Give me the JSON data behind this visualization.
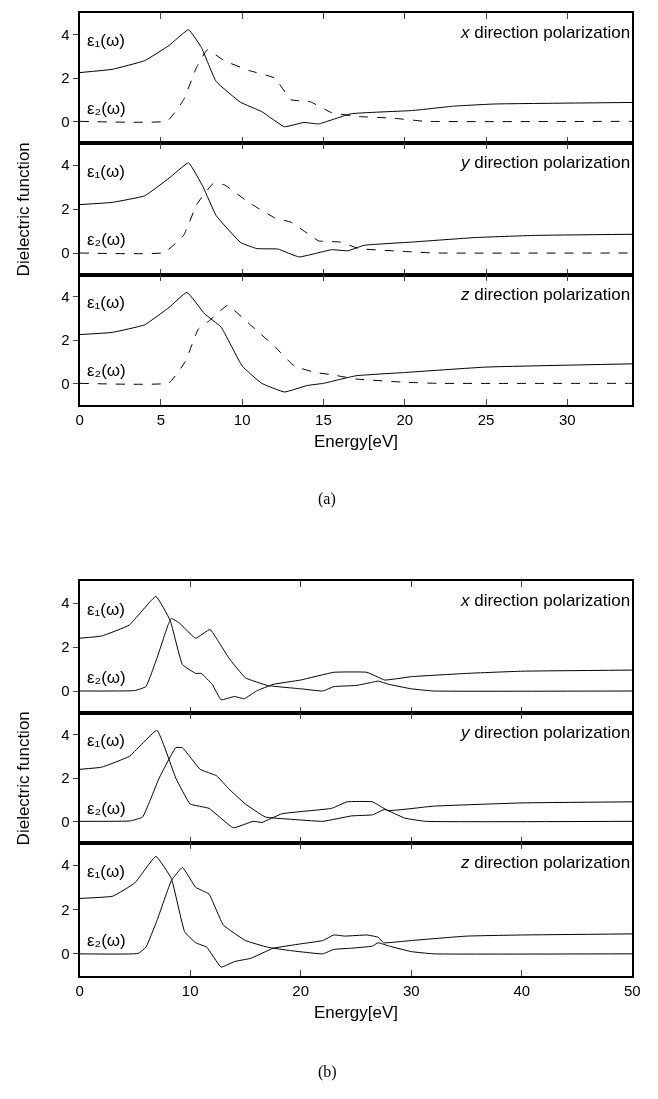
{
  "chart_data": [
    {
      "type": "line",
      "xlim": [
        0,
        34
      ],
      "xticks": [
        0,
        5,
        10,
        15,
        20,
        25,
        30
      ],
      "ylim": [
        -1,
        5
      ],
      "yticks": [
        0,
        2,
        4
      ],
      "tick_labels": "y",
      "annotations": [
        "x direction polarization"
      ],
      "series": [
        {
          "name": "ε₁(ω)",
          "color": "#000000",
          "line_style": "solid",
          "x": [
            0,
            2,
            4,
            5.5,
            6.7,
            7.5,
            8.4,
            9.9,
            11.2,
            12.6,
            13.8,
            14.7,
            16.7,
            20.5,
            23,
            25.5,
            34
          ],
          "values": [
            2.25,
            2.4,
            2.8,
            3.5,
            4.23,
            3.4,
            1.84,
            0.88,
            0.45,
            -0.25,
            -0.05,
            -0.12,
            0.35,
            0.5,
            0.7,
            0.8,
            0.87
          ]
        },
        {
          "name": "ε₂(ω)",
          "color": "#000000",
          "line_style": "dashed",
          "x": [
            0,
            5.4,
            6.4,
            7.2,
            7.85,
            8.9,
            10.4,
            12.0,
            13.0,
            14.2,
            15.5,
            17.2,
            19.2,
            21.3,
            34
          ],
          "values": [
            0,
            0.02,
            1.0,
            2.5,
            3.3,
            2.8,
            2.35,
            2.0,
            1.0,
            0.9,
            0.4,
            0.22,
            0.15,
            0,
            0
          ]
        }
      ]
    },
    {
      "type": "line",
      "xlim": [
        0,
        34
      ],
      "xticks": [
        0,
        5,
        10,
        15,
        20,
        25,
        30
      ],
      "ylim": [
        -1,
        5
      ],
      "yticks": [
        0,
        2,
        4
      ],
      "tick_labels": "y",
      "ylabel": "Dielectric function",
      "annotations": [
        "y direction polarization"
      ],
      "series": [
        {
          "name": "ε₁(ω)",
          "color": "#000000",
          "line_style": "solid",
          "x": [
            0,
            2,
            4,
            5.5,
            6.7,
            7.6,
            8.4,
            9.9,
            10.9,
            12.2,
            13.5,
            15.5,
            16.5,
            17.5,
            20.5,
            24.3,
            28,
            34
          ],
          "values": [
            2.2,
            2.3,
            2.6,
            3.4,
            4.1,
            3.0,
            1.7,
            0.48,
            0.2,
            0.18,
            -0.18,
            0.15,
            0.1,
            0.35,
            0.5,
            0.7,
            0.8,
            0.85
          ]
        },
        {
          "name": "ε₂(ω)",
          "color": "#000000",
          "line_style": "dashed",
          "x": [
            0,
            5.2,
            6.4,
            7.2,
            8.2,
            8.9,
            10.4,
            12.0,
            13.0,
            14.0,
            14.7,
            16.0,
            17.2,
            20.5,
            21.8,
            34
          ],
          "values": [
            0,
            0.02,
            0.8,
            2.2,
            3.15,
            3.1,
            2.3,
            1.6,
            1.4,
            0.9,
            0.55,
            0.5,
            0.2,
            0.05,
            0,
            0
          ]
        }
      ]
    },
    {
      "type": "line",
      "xlim": [
        0,
        34
      ],
      "xticks": [
        0,
        5,
        10,
        15,
        20,
        25,
        30
      ],
      "ylim": [
        -1,
        5
      ],
      "yticks": [
        0,
        2,
        4
      ],
      "xlabel": "Energy[eV]",
      "annotations": [
        "z direction polarization",
        "(a)"
      ],
      "series": [
        {
          "name": "ε₁(ω)",
          "color": "#000000",
          "line_style": "solid",
          "x": [
            0,
            2,
            4,
            5.5,
            6.6,
            7.7,
            8.7,
            10,
            11.2,
            12.6,
            14,
            15,
            17,
            20,
            25,
            34
          ],
          "values": [
            2.25,
            2.35,
            2.7,
            3.5,
            4.2,
            3.2,
            2.6,
            0.8,
            0.0,
            -0.4,
            -0.1,
            0,
            0.35,
            0.5,
            0.75,
            0.9
          ]
        },
        {
          "name": "ε₂(ω)",
          "color": "#000000",
          "line_style": "dashed",
          "x": [
            0,
            5.5,
            6.5,
            7.3,
            8,
            9.1,
            10.5,
            12,
            13.2,
            14.5,
            15.5,
            17,
            20,
            22,
            34
          ],
          "values": [
            0,
            0.02,
            1.0,
            2.5,
            2.9,
            3.6,
            2.7,
            1.7,
            0.8,
            0.5,
            0.4,
            0.2,
            0.05,
            0,
            0
          ]
        }
      ]
    },
    {
      "type": "line",
      "xlim": [
        0,
        50
      ],
      "xticks": [
        0,
        10,
        20,
        30,
        40,
        50
      ],
      "ylim": [
        -1,
        5
      ],
      "yticks": [
        0,
        2,
        4
      ],
      "tick_labels": "y",
      "annotations": [
        "x direction polarization"
      ],
      "series": [
        {
          "name": "ε₁(ω)",
          "color": "#000000",
          "line_style": "solid",
          "x": [
            0,
            2,
            4.5,
            6.9,
            8.2,
            9.3,
            10.5,
            11,
            12,
            12.8,
            14,
            14.9,
            16,
            17.5,
            20,
            23,
            26,
            27.6,
            30,
            35,
            40,
            50
          ],
          "values": [
            2.4,
            2.5,
            3.0,
            4.3,
            3.2,
            1.2,
            0.8,
            0.8,
            0.3,
            -0.4,
            -0.25,
            -0.35,
            0,
            0.3,
            0.5,
            0.85,
            0.85,
            0.5,
            0.65,
            0.8,
            0.9,
            0.95
          ]
        },
        {
          "name": "ε₂(ω)",
          "color": "#000000",
          "line_style": "solid",
          "x": [
            0,
            5,
            6,
            7,
            8,
            8.3,
            9,
            10.5,
            11.8,
            12.5,
            13.5,
            15,
            17,
            20,
            22,
            23,
            25,
            26.5,
            27,
            28,
            30,
            32,
            50
          ],
          "values": [
            0,
            0.02,
            0.2,
            1.5,
            3.0,
            3.3,
            3.1,
            2.4,
            2.8,
            2.3,
            1.5,
            0.6,
            0.25,
            0.1,
            0,
            0.2,
            0.25,
            0.4,
            0.45,
            0.3,
            0.1,
            0,
            0
          ]
        }
      ]
    },
    {
      "type": "line",
      "xlim": [
        0,
        50
      ],
      "xticks": [
        0,
        10,
        20,
        30,
        40,
        50
      ],
      "ylim": [
        -1,
        5
      ],
      "yticks": [
        0,
        2,
        4
      ],
      "tick_labels": "y",
      "ylabel": "Dielectric function",
      "annotations": [
        "y direction polarization"
      ],
      "series": [
        {
          "name": "ε₁(ω)",
          "color": "#000000",
          "line_style": "solid",
          "x": [
            0,
            2,
            4.5,
            7.0,
            8.7,
            10,
            11.7,
            13.9,
            15.7,
            16.5,
            18.3,
            22.8,
            24.2,
            26.5,
            27.9,
            32,
            40,
            50
          ],
          "values": [
            2.4,
            2.5,
            3.0,
            4.2,
            2.0,
            0.8,
            0.6,
            -0.3,
            0,
            -0.05,
            0.35,
            0.6,
            0.9,
            0.9,
            0.5,
            0.7,
            0.85,
            0.9
          ]
        },
        {
          "name": "ε₂(ω)",
          "color": "#000000",
          "line_style": "solid",
          "x": [
            0,
            4.6,
            5.7,
            7.2,
            8.7,
            9.3,
            10.9,
            12.4,
            13.5,
            15,
            16.8,
            19,
            22,
            24.6,
            26.5,
            27.6,
            29.4,
            31.3,
            50
          ],
          "values": [
            0,
            0.02,
            0.2,
            2.0,
            3.4,
            3.4,
            2.4,
            2.1,
            1.5,
            0.8,
            0.2,
            0.1,
            0,
            0.25,
            0.3,
            0.55,
            0.15,
            0,
            0
          ]
        }
      ]
    },
    {
      "type": "line",
      "xlim": [
        0,
        50
      ],
      "xticks": [
        0,
        10,
        20,
        30,
        40,
        50
      ],
      "ylim": [
        -1,
        5
      ],
      "yticks": [
        0,
        2,
        4
      ],
      "xlabel": "Energy[eV]",
      "annotations": [
        "z direction polarization",
        "(b)"
      ],
      "series": [
        {
          "name": "ε₁(ω)",
          "color": "#000000",
          "line_style": "solid",
          "x": [
            0,
            3,
            5,
            6.9,
            8.3,
            9.5,
            10.5,
            11.5,
            12.8,
            14,
            15.5,
            17.5,
            20,
            22,
            23,
            24,
            26,
            27,
            27.5,
            30,
            35,
            40,
            50
          ],
          "values": [
            2.5,
            2.6,
            3.2,
            4.4,
            3.4,
            1.0,
            0.5,
            0.3,
            -0.6,
            -0.35,
            -0.2,
            0.25,
            0.45,
            0.6,
            0.85,
            0.8,
            0.85,
            0.75,
            0.5,
            0.6,
            0.8,
            0.85,
            0.9
          ]
        },
        {
          "name": "ε₂(ω)",
          "color": "#000000",
          "line_style": "solid",
          "x": [
            0,
            5.3,
            6,
            7,
            8.3,
            9.3,
            10.5,
            11.7,
            13,
            15,
            17,
            19,
            22,
            23,
            24.5,
            26.5,
            27,
            28,
            30,
            32,
            50
          ],
          "values": [
            0,
            0.02,
            0.3,
            1.5,
            3.3,
            3.9,
            3.0,
            2.7,
            1.3,
            0.6,
            0.3,
            0.15,
            0,
            0.2,
            0.25,
            0.35,
            0.5,
            0.35,
            0.1,
            0,
            0
          ]
        }
      ]
    }
  ]
}
